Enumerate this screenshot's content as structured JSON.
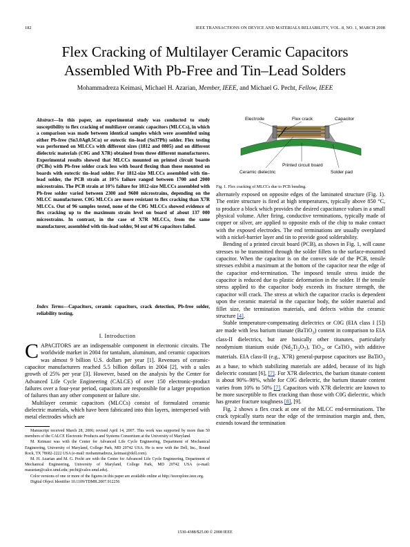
{
  "header": {
    "page_number": "182",
    "journal": "IEEE TRANSACTIONS ON DEVICE AND MATERIALS RELIABILITY, VOL. 8, NO. 1, MARCH 2008"
  },
  "title": {
    "line1": "Flex Cracking of Multilayer Ceramic Capacitors",
    "line2": "Assembled With Pb-Free and Tin–Lead Solders"
  },
  "authors": {
    "names": "Mohammadreza Keimasi, Michael H. Azarian, ",
    "azarian_title": "Member, IEEE",
    "sep": ", and Michael G. Pecht, ",
    "pecht_title": "Fellow, IEEE"
  },
  "abstract": {
    "label": "Abstract",
    "text": "—In this paper, an experimental study was conducted to study susceptibility to flex cracking of multilayer ceramic capacitors (MLCCs), in which a comparison was made between identical samples which were assembled using either Pb-free (Sn3.0Ag0.5Cu) or eutectic tin–lead (Sn37Pb) solder. Flex testing was performed on MLCCs with different sizes (1812 and 0805) and on different dielectric materials (C0G and X7R) obtained from three different manufacturers. Experimental results showed that MLCCs mounted on printed circuit boards (PCBs) with Pb-free solder crack less with board flexing than those mounted on boards with eutectic tin–lead solder. For 1812-size MLCCs assembled with tin–lead solder, the PCB strain at 10% failure ranged between 1700 and 2000 microstrains. The PCB strain at 10% failure for 1812-size MLCCs assembled with Pb-free solder varied between 2300 and 9600 microstrains, depending on the MLCC manufacturer. C0G MLCCs are more resistant to flex cracking than X7R MLCCs. Out of 96 samples tested, none of the C0G MLCCs showed evidence of flex cracking up to the maximum strain level on board of about 137 000 microstrains. In contrast, in the case of X7R MLCCs, from the same manufacturer, assembled with tin–lead solder, 94 out of 96 capacitors failed."
  },
  "index_terms": {
    "label": "Index Terms",
    "text": "—Capacitors, ceramic capacitors, crack detection, Pb-free solder, reliability testing."
  },
  "section1": {
    "heading": "I. Introduction",
    "dropcap": "C",
    "p1": "APACITORS are an indispensable component in electronic circuits. The worldwide market in 2004 for tantalum, aluminum, and ceramic capacitors was almost 9 billion U.S. dollars per year [1]. Revenues of ceramic-capacitor manufacturers reached 5.5 billion dollars in 2004 [2], with a sales growth of 25% per year [3]. However, based on the analysis by the Center for Advanced Life Cycle Engineering (CALCE) of over 150 electronic-product failures over a four-year period, capacitors are responsible for a larger proportion of failures than any other component or failure site.",
    "p2": "Multilayer ceramic capacitors (MLCCs) consist of formulated ceramic dielectric materials, which have been fabricated into thin layers, interspersed with metal electrodes which are"
  },
  "footnotes": {
    "f1": "Manuscript received March 28, 2006; revised April 14, 2007. This work was supported by more than 50 members of the CALCE Electronic Products and Systems Consortium at the University of Maryland.",
    "f2": "M. Keimasi was with the Center for Advanced Life Cycle Engineering, Department of Mechanical Engineering, University of Maryland, College Park, MD 20742 USA. He is now with the Dell, Inc., Round Rock, TX 78682-2222 USA (e-mail: mohammadreza_keimasi@dell.com).",
    "f3": "M. H. Azarian and M. G. Pecht are with the Center for Advanced Life Cycle Engineering, Department of Mechanical Engineering, University of Maryland, College Park, MD 20742 USA (e-mail: mazarian@calce.umd.edu; pecht@calce.umd.edu).",
    "f4": "Color versions of one or more of the figures in this paper are available online at http://ieeexplore.ieee.org.",
    "f5": "Digital Object Identifier 10.1109/TDMR.2007.912256"
  },
  "figure1": {
    "labels": {
      "electrode": "Electrode",
      "flex_crack": "Flex crack",
      "capacitor": "Capacitor",
      "pcb": "Printed circuit board",
      "ceramic": "Ceramic dielectric",
      "solder": "Solder pad"
    },
    "caption": "Fig. 1.   Flex cracking of MLCCs due to PCB bending."
  },
  "right_column": {
    "p1": "alternately exposed on opposite edges of the laminated structure (Fig. 1). The entire structure is fired at high temperatures, typically above 850 °C, to produce a block which provides the desired capacitance values in a small physical volume. After firing, conductive terminations, typically made of copper or silver, are applied to opposite ends of the chip to make contact with the exposed electrodes. The end terminations are usually overplated with a nickel-barrier layer and tin to provide good solderability.",
    "p2": "Bending of a printed circuit board (PCB), as shown in Fig. 1, will cause stresses to be transmitted through the solder fillets to the surface-mounted capacitor. When the capacitor is on the convex side of the PCB, tensile stresses exhibit a maximum at the bottom of the capacitor near the edge of the capacitor end-termination. The imposed tensile stress inside the capacitor is reduced due to plastic deformation in the solder. If the tensile stress applied to the capacitor body exceeds its fracture strength, the capacitor will crack. The stress at which the capacitor cracks is dependent upon the ceramic material in the capacitor body, the solder material and fillet size, the termination materials, and defects within the ceramic structure ",
    "p2_ref": "[4]",
    "p2_end": ".",
    "p3a": "Stable temperature-compensating dielectrics or C0G (EIA class I [5]) are made with less barium titanate (BaTiO",
    "p3b": ") content in comparison to EIA class-II dielectrics, but are basically other titanates, particularly neodymium titanium oxide (Nd",
    "p3c": "Ti",
    "p3d": "O",
    "p3e": "), TiO",
    "p3f": ", or CaTiO",
    "p3g": " with additive materials. EIA class-II (e.g., X7R) general-purpose capacitors use BaTiO",
    "p3h": " as a base, to which stabilizing materials are added, because of its high dielectric constant [6], ",
    "p3_ref7a": "[7]",
    "p3i": ". For X7R dielectrics, the barium titanate content is about 90%–98%, while for C0G dielectric, the barium titanate content varies from 10% to 50% ",
    "p3_ref7b": "[7]",
    "p3j": ". Capacitors with X7R dielectric are known to be more susceptible to flex cracking than those with C0G dielectric, which has greater fracture toughness ",
    "p3_ref8": "[8]",
    "p3k": ", [9].",
    "p4": "Fig. 2 shows a flex crack at one of the MLCC end-terminations. The crack typically starts near the edge of the termination margin and, then, extends toward the termination"
  },
  "footer": {
    "copyright": "1530-4388/$25.00 © 2008 IEEE"
  },
  "colors": {
    "pcb_green": "#2f8f3c",
    "capacitor_tan": "#b0925c",
    "electrode_gray": "#5a5a5a",
    "solder_gray": "#9a9a9a",
    "link_blue": "#1a3a9a"
  }
}
